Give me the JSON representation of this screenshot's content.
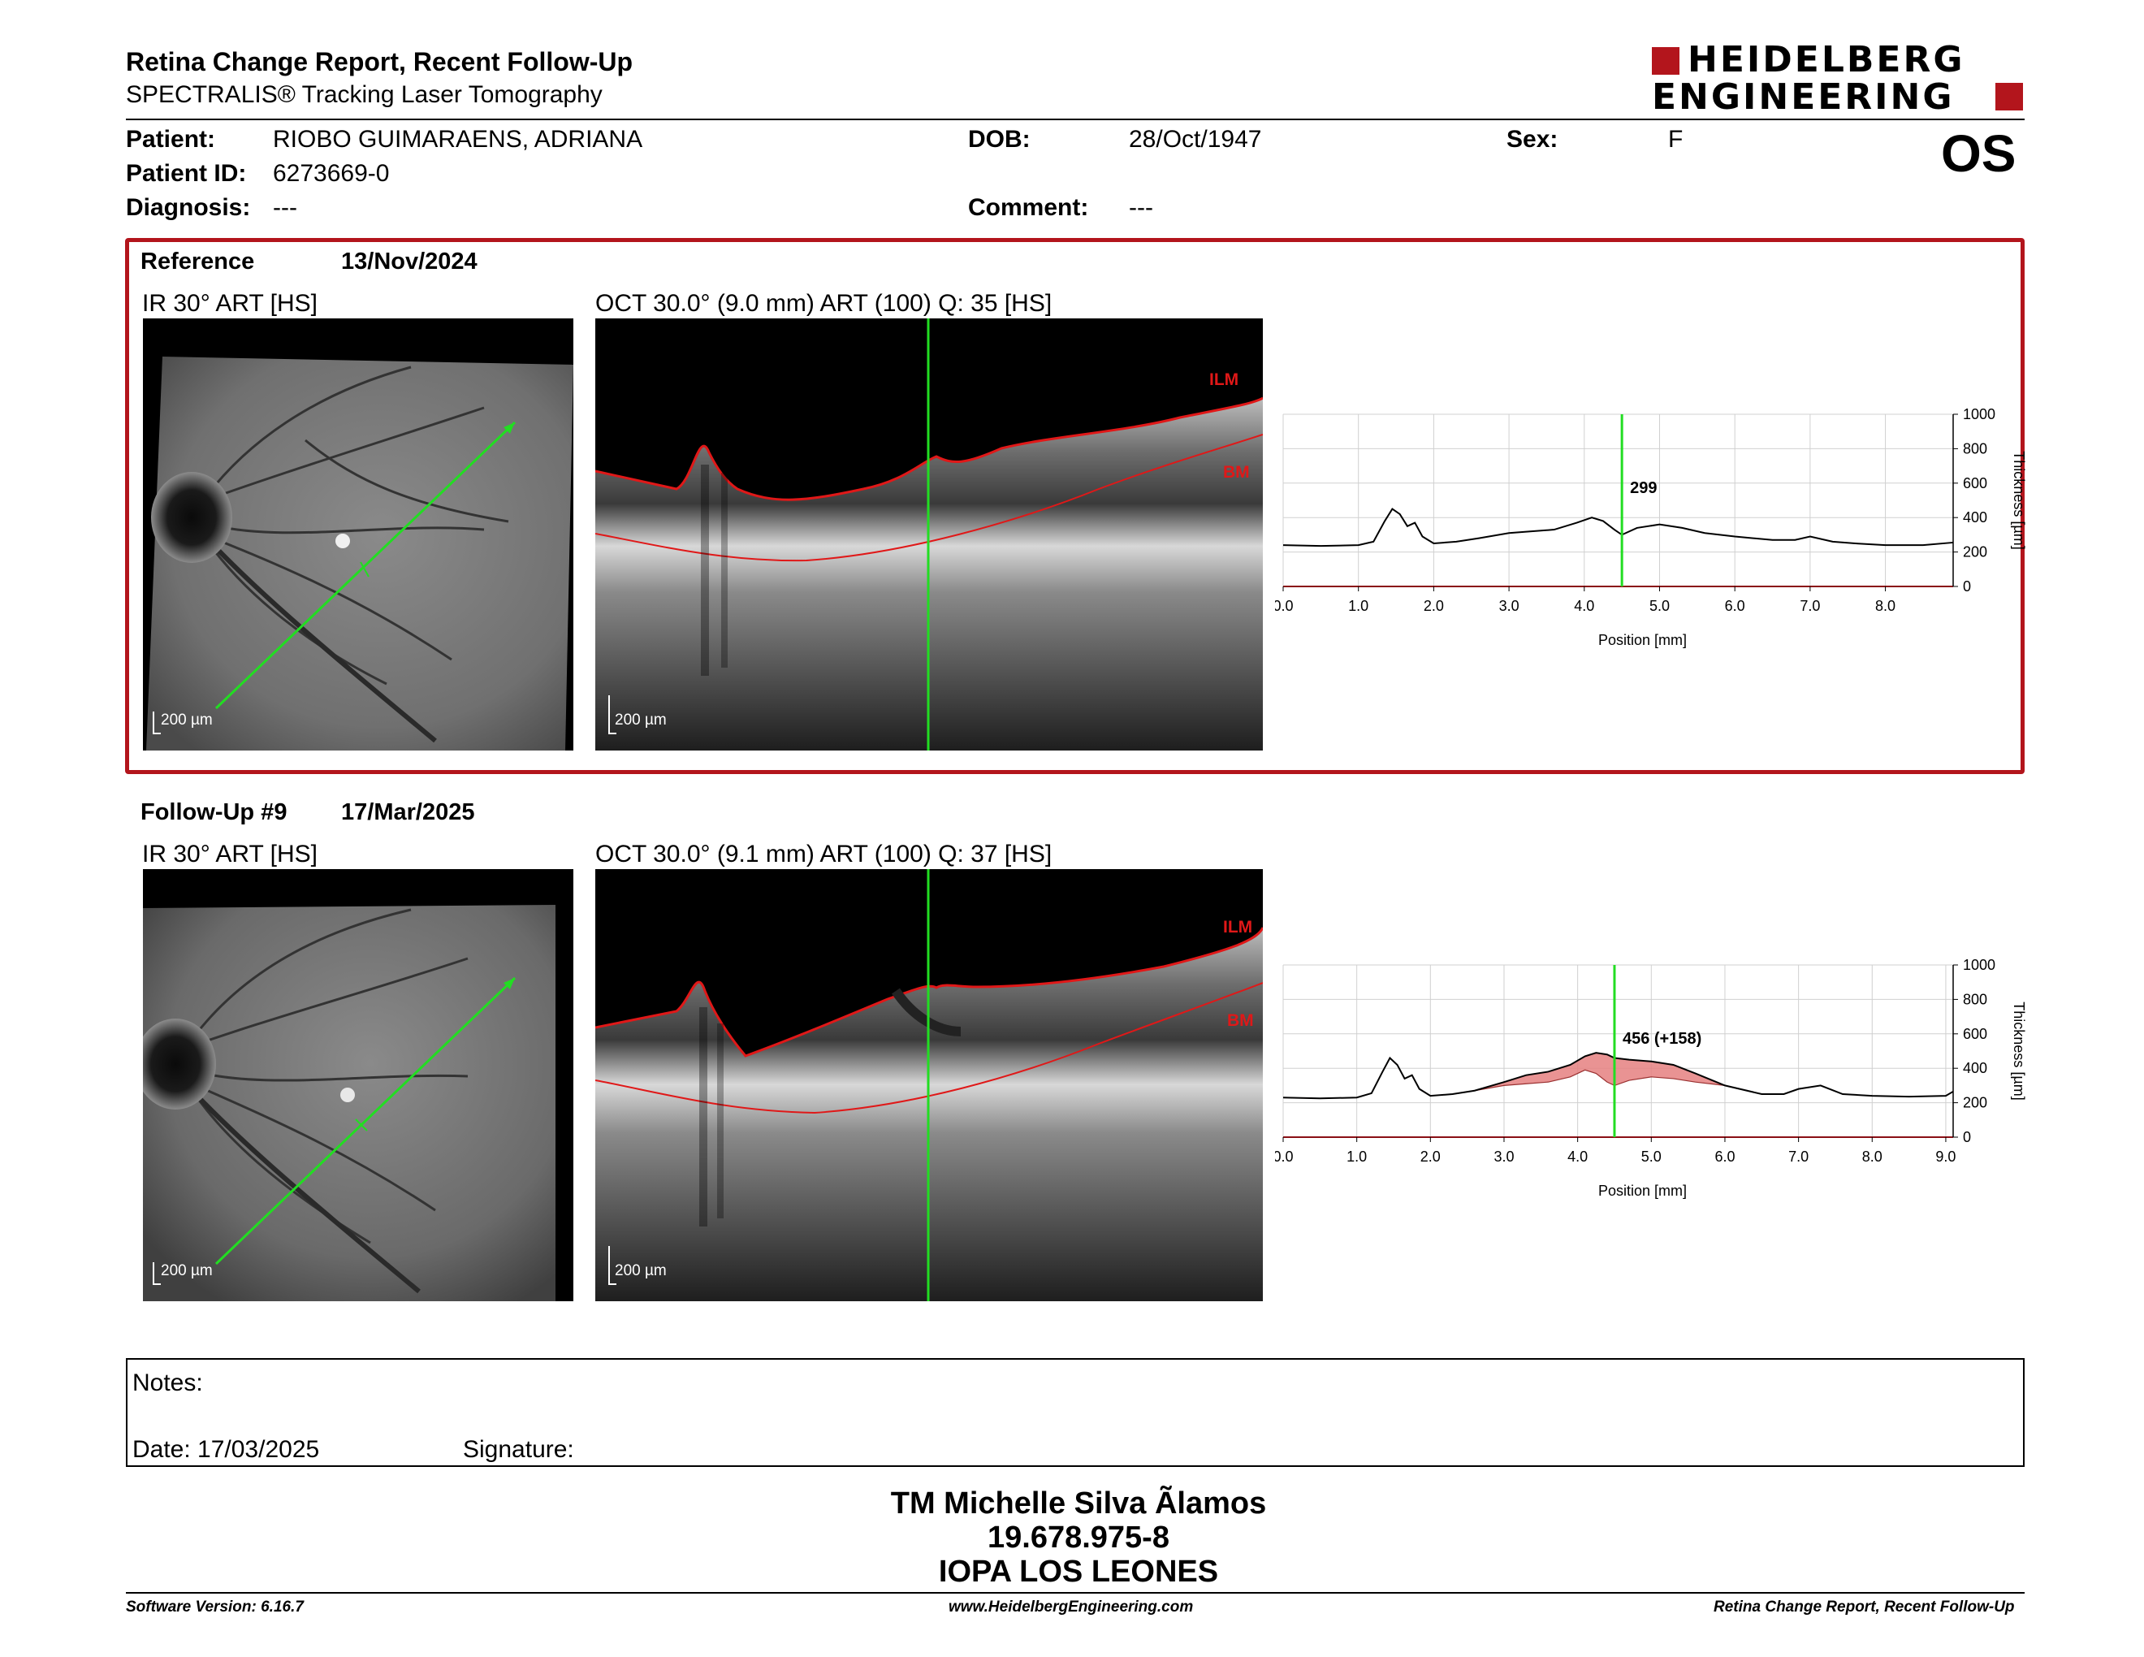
{
  "header": {
    "title": "Retina Change Report, Recent Follow-Up",
    "subtitle": "SPECTRALIS® Tracking Laser Tomography",
    "logo_line1": "HEIDELBERG",
    "logo_line2": "ENGINEERING",
    "eye": "OS"
  },
  "patient": {
    "patient_label": "Patient:",
    "patient_value": "RIOBO GUIMARAENS, ADRIANA",
    "dob_label": "DOB:",
    "dob_value": "28/Oct/1947",
    "sex_label": "Sex:",
    "sex_value": "F",
    "id_label": "Patient ID:",
    "id_value": "6273669-0",
    "diagnosis_label": "Diagnosis:",
    "diagnosis_value": "---",
    "comment_label": "Comment:",
    "comment_value": "---"
  },
  "reference": {
    "label": "Reference",
    "date": "13/Nov/2024",
    "ir_caption": "IR 30° ART [HS]",
    "oct_caption": "OCT 30.0° (9.0 mm) ART (100) Q: 35 [HS]",
    "scale_ir": "200 µm",
    "scale_oct": "200 µm",
    "ilm_label": "ILM",
    "bm_label": "BM",
    "thickness_readout": "299"
  },
  "followup": {
    "label": "Follow-Up #9",
    "date": "17/Mar/2025",
    "ir_caption": "IR 30° ART [HS]",
    "oct_caption": "OCT 30.0° (9.1 mm) ART (100) Q: 37 [HS]",
    "scale_ir": "200 µm",
    "scale_oct": "200 µm",
    "ilm_label": "ILM",
    "bm_label": "BM",
    "thickness_readout": "456 (+158)"
  },
  "chart_data": [
    {
      "type": "line",
      "xlabel": "Position [mm]",
      "ylabel": "Thickness [µm]",
      "xlim": [
        0,
        8.9
      ],
      "ylim": [
        0,
        1000
      ],
      "x_ticks": [
        "0.0",
        "1.0",
        "2.0",
        "3.0",
        "4.0",
        "5.0",
        "6.0",
        "7.0",
        "8.0"
      ],
      "y_ticks": [
        "0",
        "200",
        "400",
        "600",
        "800",
        "1000"
      ],
      "grid": true,
      "cursor_x": 4.5,
      "cursor_label": "299",
      "series": [
        {
          "x": [
            0,
            0.5,
            1.0,
            1.2,
            1.35,
            1.45,
            1.55,
            1.65,
            1.75,
            1.85,
            2.0,
            2.3,
            2.6,
            3.0,
            3.3,
            3.6,
            3.9,
            4.1,
            4.25,
            4.4,
            4.5,
            4.7,
            5.0,
            5.3,
            5.6,
            6.0,
            6.5,
            6.8,
            7.0,
            7.3,
            7.6,
            8.0,
            8.5,
            8.9
          ],
          "y": [
            240,
            235,
            240,
            260,
            380,
            450,
            420,
            350,
            370,
            290,
            250,
            260,
            280,
            310,
            320,
            330,
            370,
            400,
            380,
            330,
            300,
            340,
            360,
            340,
            310,
            290,
            270,
            270,
            290,
            260,
            250,
            240,
            240,
            255
          ]
        }
      ]
    },
    {
      "type": "area",
      "xlabel": "Position [mm]",
      "ylabel": "Thickness [µm]",
      "xlim": [
        0,
        9.1
      ],
      "ylim": [
        0,
        1000
      ],
      "x_ticks": [
        "0.0",
        "1.0",
        "2.0",
        "3.0",
        "4.0",
        "5.0",
        "6.0",
        "7.0",
        "8.0",
        "9.0"
      ],
      "y_ticks": [
        "0",
        "200",
        "400",
        "600",
        "800",
        "1000"
      ],
      "grid": true,
      "cursor_x": 4.5,
      "cursor_label": "456 (+158)",
      "series": [
        {
          "name": "follow-up",
          "x": [
            0,
            0.5,
            1.0,
            1.2,
            1.35,
            1.45,
            1.55,
            1.65,
            1.75,
            1.85,
            2.0,
            2.3,
            2.6,
            3.0,
            3.3,
            3.6,
            3.9,
            4.1,
            4.25,
            4.4,
            4.5,
            4.7,
            5.0,
            5.3,
            5.6,
            6.0,
            6.5,
            6.8,
            7.0,
            7.3,
            7.6,
            8.0,
            8.5,
            9.0,
            9.1
          ],
          "y": [
            230,
            225,
            230,
            255,
            380,
            460,
            420,
            340,
            360,
            280,
            240,
            250,
            270,
            320,
            360,
            380,
            420,
            470,
            490,
            480,
            460,
            450,
            440,
            420,
            370,
            300,
            250,
            250,
            280,
            300,
            250,
            240,
            235,
            240,
            265
          ]
        },
        {
          "name": "reference",
          "x": [
            0,
            0.5,
            1.0,
            1.2,
            1.35,
            1.45,
            1.55,
            1.65,
            1.75,
            1.85,
            2.0,
            2.3,
            2.6,
            3.0,
            3.3,
            3.6,
            3.9,
            4.1,
            4.25,
            4.4,
            4.5,
            4.7,
            5.0,
            5.3,
            5.6,
            6.0,
            6.5,
            6.8,
            7.0,
            7.3,
            7.6,
            8.0,
            8.5,
            9.0,
            9.1
          ],
          "y": [
            230,
            225,
            230,
            255,
            380,
            460,
            420,
            340,
            360,
            280,
            240,
            250,
            270,
            300,
            310,
            320,
            350,
            390,
            370,
            320,
            300,
            330,
            350,
            340,
            320,
            300,
            250,
            250,
            280,
            300,
            250,
            240,
            235,
            240,
            265
          ]
        }
      ]
    }
  ],
  "notes": {
    "notes_label": "Notes:",
    "date_label": "Date: 17/03/2025",
    "signature_label": "Signature:"
  },
  "signature_block": {
    "name": "TM Michelle Silva Ãlamos",
    "rut": "19.678.975-8",
    "place": "IOPA LOS LEONES"
  },
  "footer": {
    "software": "Software Version: 6.16.7",
    "website": "www.HeidelbergEngineering.com",
    "report": "Retina Change Report, Recent Follow-Up"
  },
  "colors": {
    "brand_red": "#b3151c",
    "green_line": "#22dd22",
    "ilm_red": "#e01818",
    "diff_fill": "#e58080"
  }
}
